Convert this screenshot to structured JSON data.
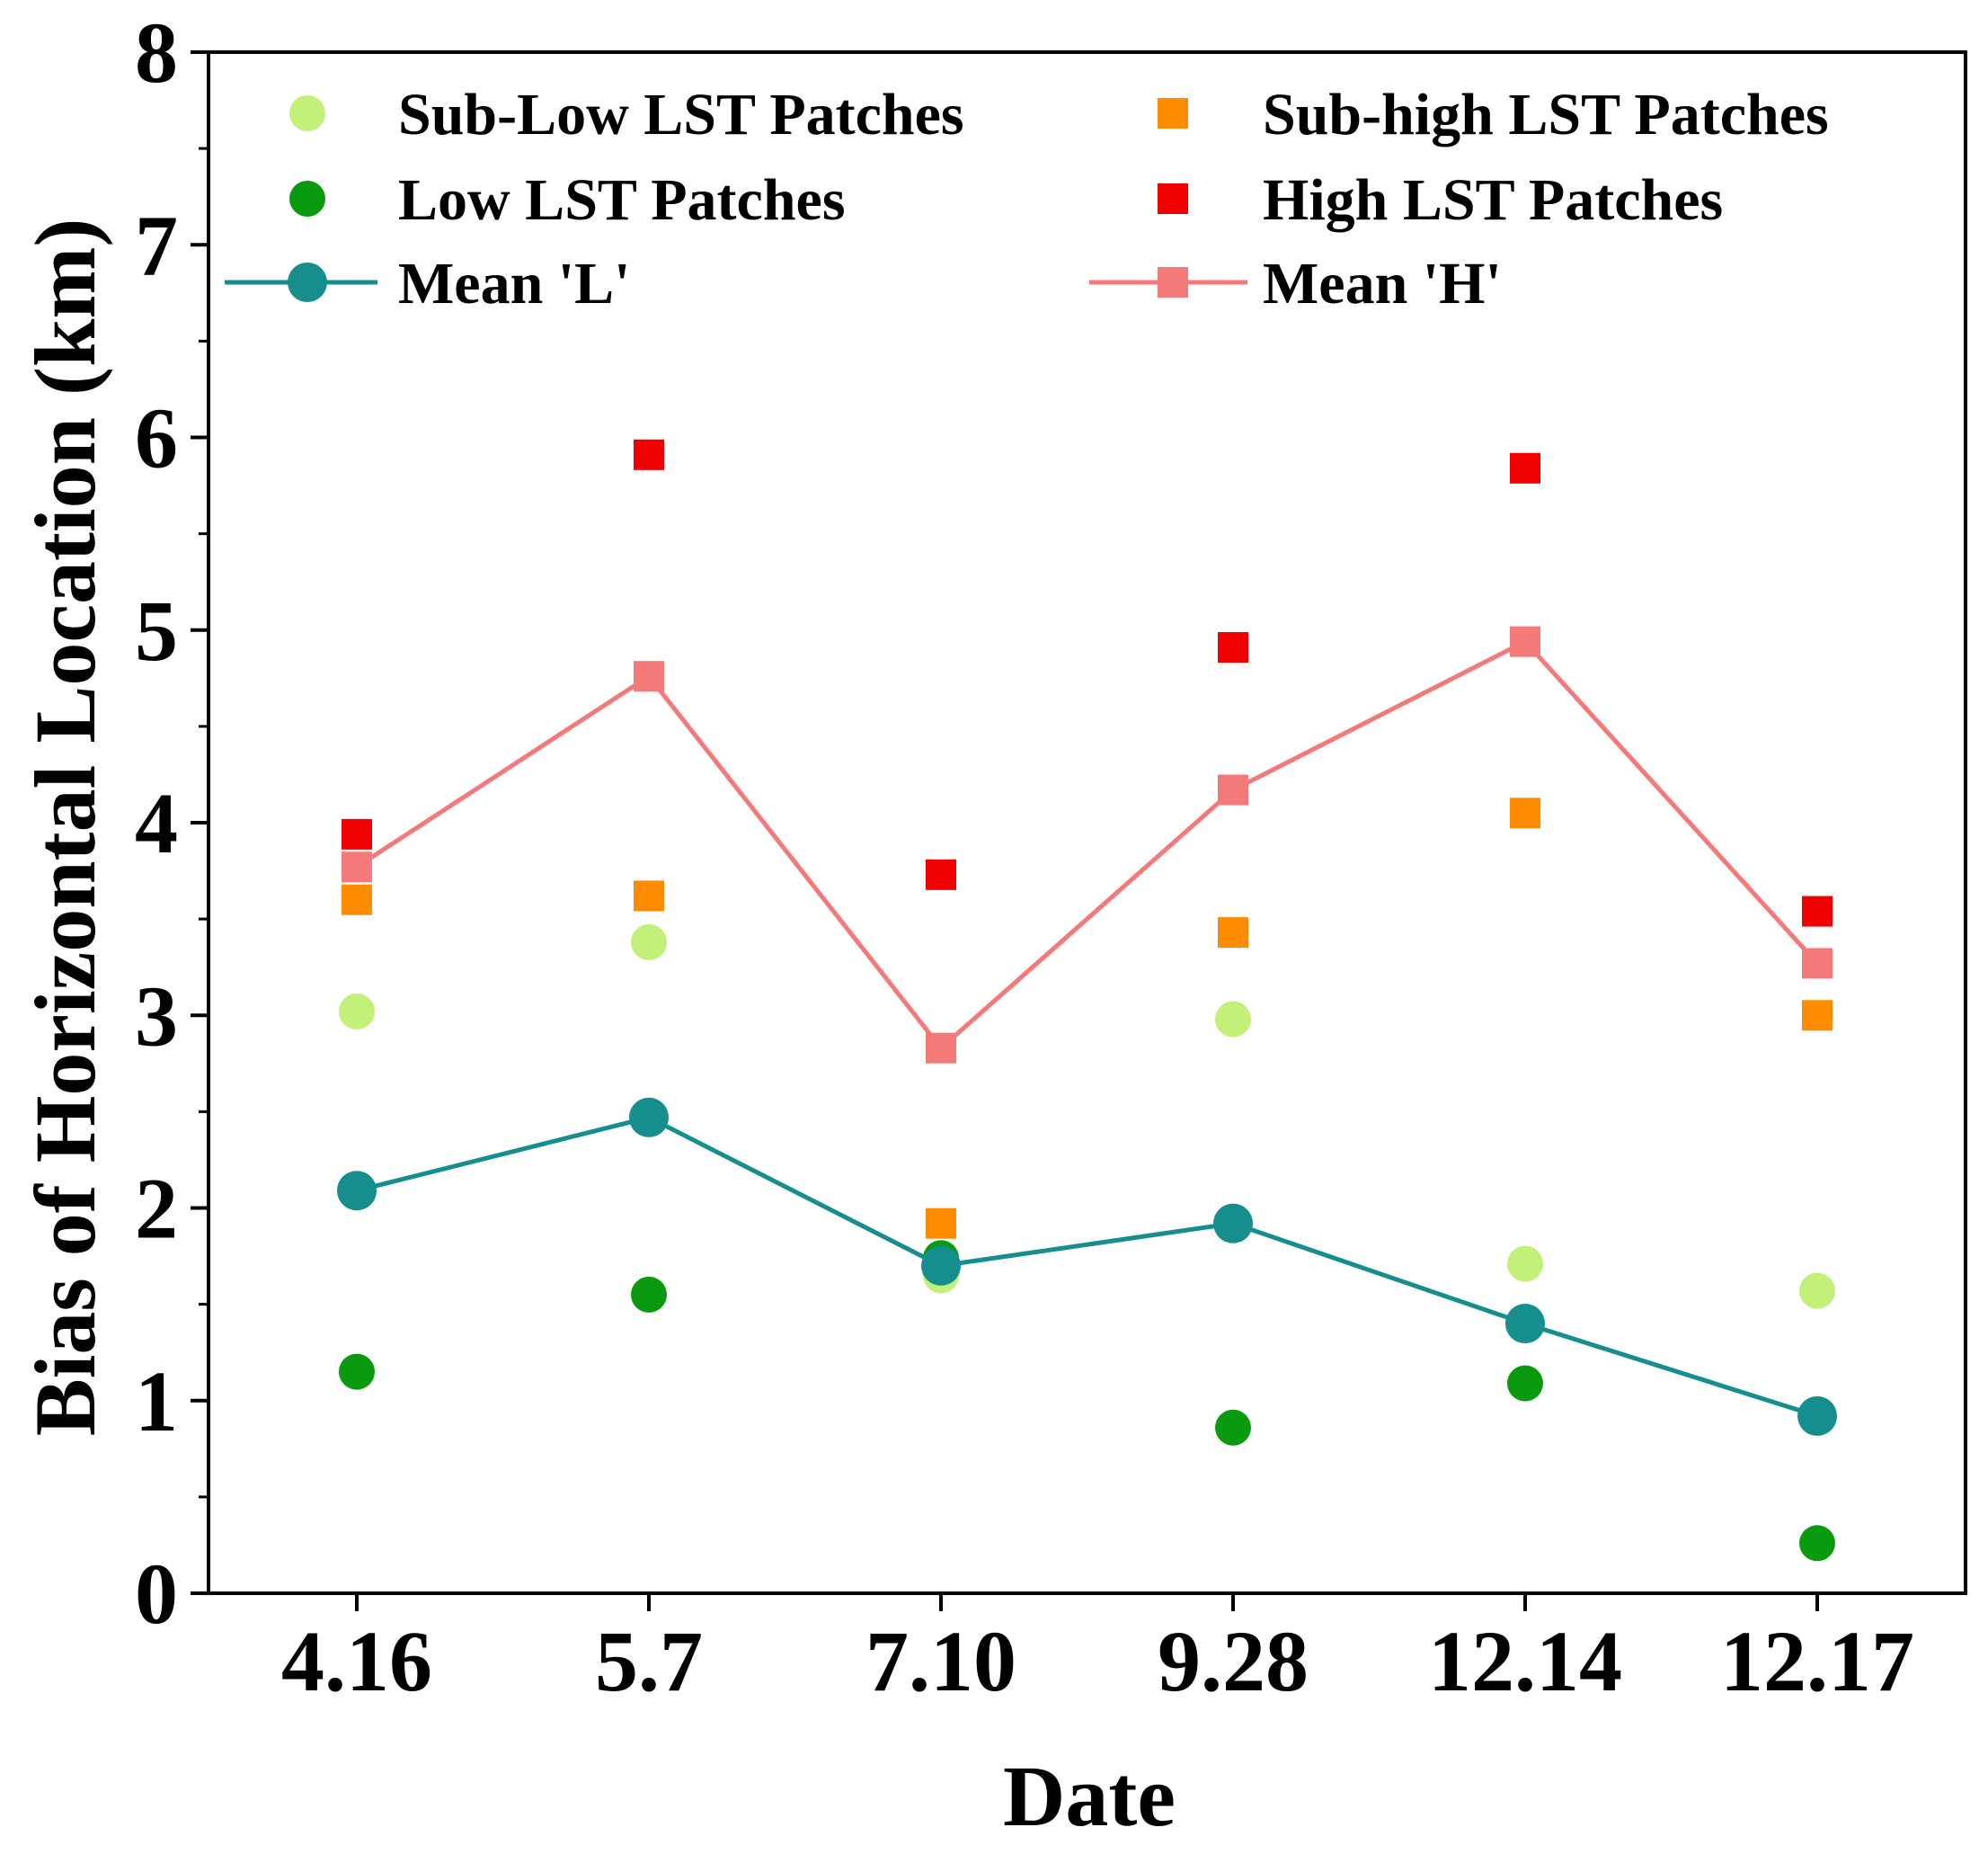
{
  "chart_data": {
    "type": "scatter",
    "title": "",
    "xlabel": "Date",
    "ylabel": "Bias of Horizontal Location (km)",
    "ylim": [
      0,
      8
    ],
    "yticks": [
      "0",
      "1",
      "2",
      "3",
      "4",
      "5",
      "6",
      "7",
      "8"
    ],
    "categories": [
      "4.16",
      "5.7",
      "7.10",
      "9.28",
      "12.14",
      "12.17"
    ],
    "legend_position": "top",
    "series": [
      {
        "key": "sublow",
        "name": "Sub-Low LST Patches",
        "marker": "circle",
        "line": false,
        "color": "#c3f078",
        "values": [
          3.02,
          3.38,
          1.65,
          2.98,
          1.71,
          1.57
        ]
      },
      {
        "key": "low",
        "name": "Low LST Patches",
        "marker": "circle",
        "line": false,
        "color": "#0a9a10",
        "values": [
          1.15,
          1.55,
          1.74,
          0.86,
          1.09,
          0.26
        ]
      },
      {
        "key": "meanL",
        "name": "Mean 'L'",
        "marker": "circle",
        "line": true,
        "color": "#168e8e",
        "values": [
          2.09,
          2.47,
          1.7,
          1.92,
          1.4,
          0.92
        ]
      },
      {
        "key": "subhigh",
        "name": "Sub-high LST Patches",
        "marker": "square",
        "line": false,
        "color": "#ff8c00",
        "values": [
          3.6,
          3.62,
          1.92,
          3.43,
          4.05,
          3.0
        ]
      },
      {
        "key": "high",
        "name": "High LST Patches",
        "marker": "square",
        "line": false,
        "color": "#f00000",
        "values": [
          3.94,
          5.91,
          3.73,
          4.91,
          5.84,
          3.54
        ]
      },
      {
        "key": "meanH",
        "name": "Mean 'H'",
        "marker": "square",
        "line": true,
        "color": "#f47a7a",
        "values": [
          3.77,
          4.76,
          2.83,
          4.17,
          4.94,
          3.27
        ]
      }
    ]
  }
}
